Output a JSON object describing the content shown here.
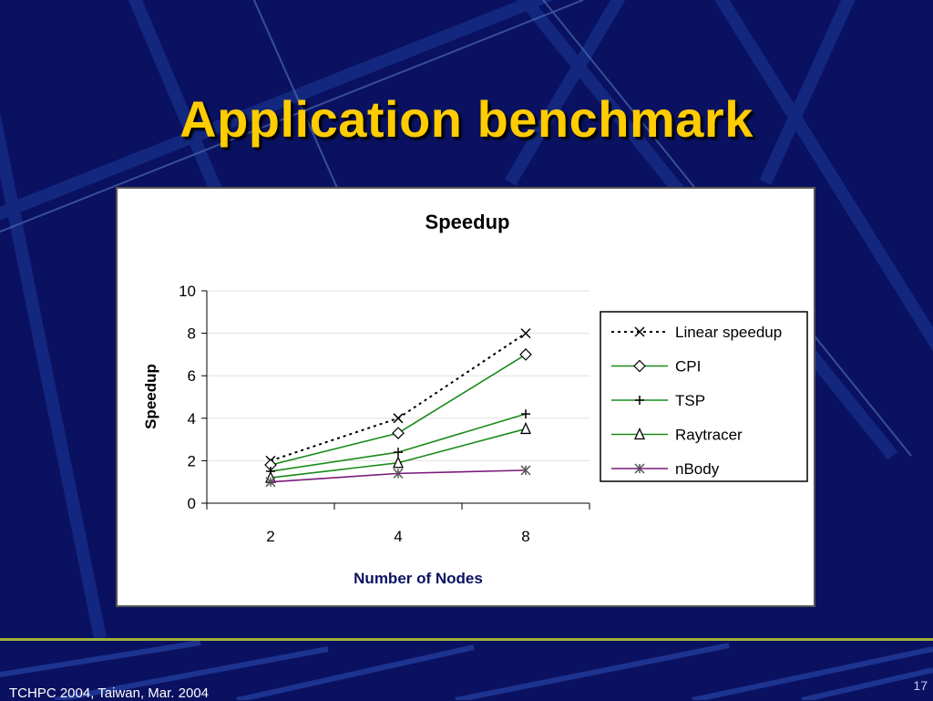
{
  "slide": {
    "title": "Application benchmark",
    "footer": "TCHPC 2004, Taiwan, Mar. 2004",
    "page_number": "17"
  },
  "colors": {
    "background": "#0a1160",
    "title": "#ffcc00",
    "axis_label": "#0a1160",
    "series_green": "#1a8a1a",
    "series_purple": "#7a1a7a"
  },
  "chart_data": {
    "type": "line",
    "title": "Speedup",
    "xlabel": "Number of Nodes",
    "ylabel": "Speedup",
    "categories": [
      "2",
      "4",
      "8"
    ],
    "ylim": [
      0,
      10
    ],
    "yticks": [
      "0",
      "2",
      "4",
      "6",
      "8",
      "10"
    ],
    "grid": "horizontal",
    "legend_position": "right",
    "series": [
      {
        "name": "Linear speedup",
        "values": [
          2,
          4,
          8
        ],
        "color": "#000000",
        "dash": "dotted",
        "marker": "x"
      },
      {
        "name": "CPI",
        "values": [
          1.8,
          3.3,
          7.0
        ],
        "color": "#1a8a1a",
        "dash": "solid",
        "marker": "diamond"
      },
      {
        "name": "TSP",
        "values": [
          1.5,
          2.4,
          4.2
        ],
        "color": "#1a8a1a",
        "dash": "solid",
        "marker": "plus"
      },
      {
        "name": "Raytracer",
        "values": [
          1.2,
          1.9,
          3.5
        ],
        "color": "#1a8a1a",
        "dash": "solid",
        "marker": "triangle"
      },
      {
        "name": "nBody",
        "values": [
          1.0,
          1.4,
          1.55
        ],
        "color": "#7a1a7a",
        "dash": "solid",
        "marker": "asterisk"
      }
    ]
  }
}
